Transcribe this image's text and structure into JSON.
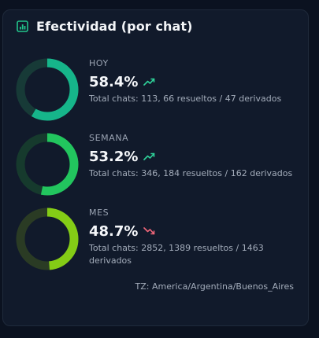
{
  "header": {
    "title": "Efectividad (por chat)",
    "icon": "bar-chart-icon",
    "icon_color": "#22c58b"
  },
  "periods": [
    {
      "label": "HOY",
      "value": "58.4%",
      "fraction": 0.584,
      "trend": "up",
      "trend_icon": "trending-up-icon",
      "detail": "Total chats: 113, 66 resueltos / 47 derivados",
      "fill_color": "#16b58a",
      "track_color": "#173a37"
    },
    {
      "label": "SEMANA",
      "value": "53.2%",
      "fraction": 0.532,
      "trend": "up",
      "trend_icon": "trending-up-icon",
      "detail": "Total chats: 346, 184 resueltos / 162 derivados",
      "fill_color": "#22c55e",
      "track_color": "#163a2d"
    },
    {
      "label": "MES",
      "value": "48.7%",
      "fraction": 0.487,
      "trend": "down",
      "trend_icon": "trending-down-icon",
      "detail": "Total chats: 2852, 1389 resueltos / 1463 derivados",
      "fill_color": "#84cc16",
      "track_color": "#2a3b24"
    }
  ],
  "timezone": "TZ: America/Argentina/Buenos_Aires",
  "colors": {
    "trend_up": "#2fd39a",
    "trend_down": "#f0677a"
  }
}
